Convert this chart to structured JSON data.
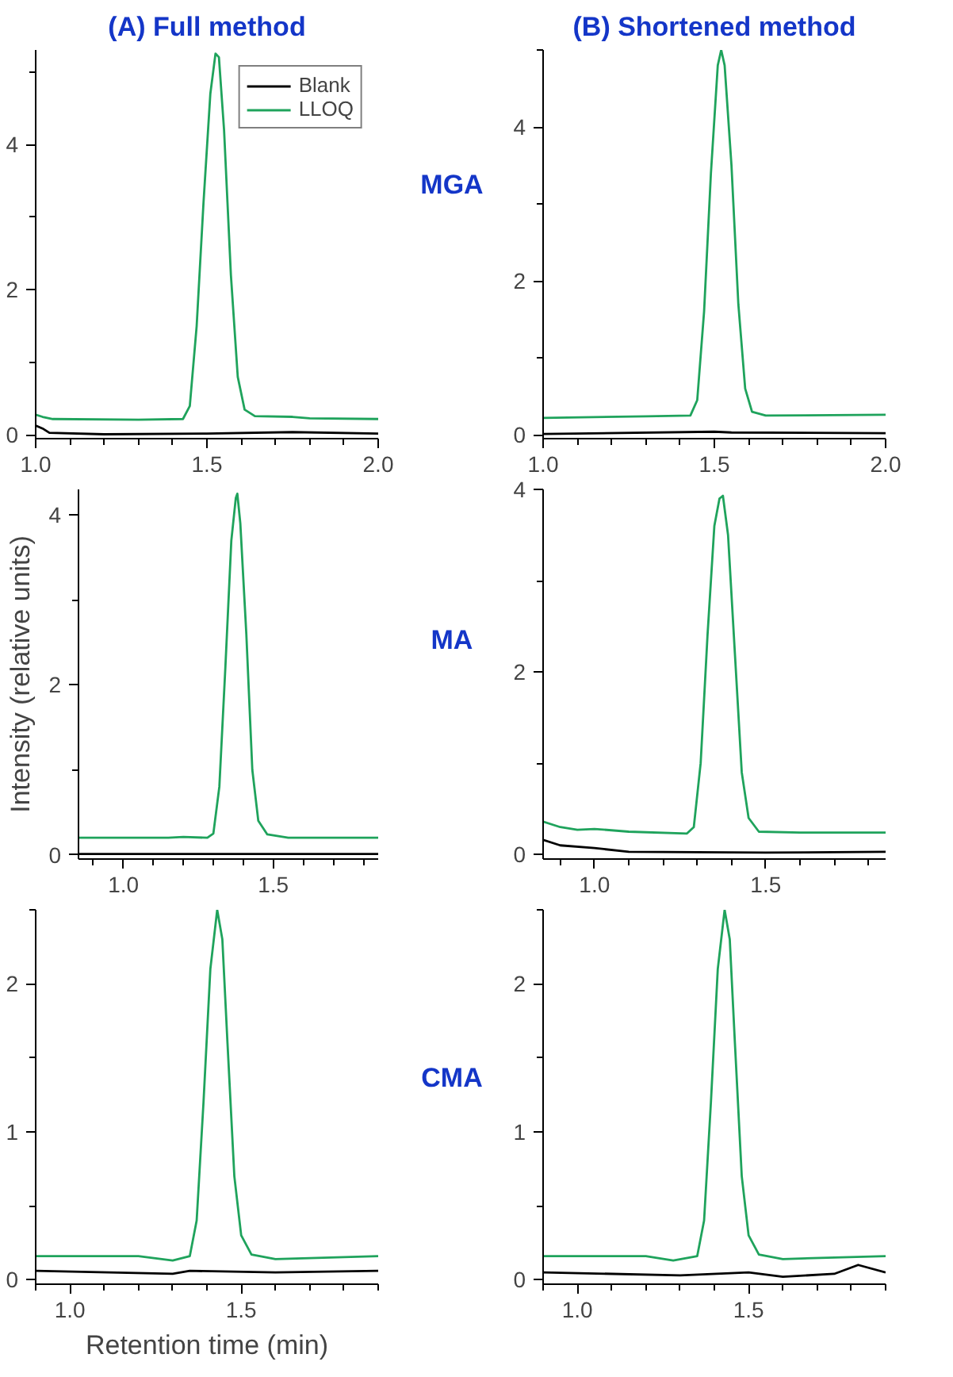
{
  "chart_data": [
    {
      "type": "line",
      "title": "(A) Full method",
      "annotations": [
        "MGA"
      ],
      "legend": "top right",
      "grid": false,
      "xlim": [
        1.0,
        2.0
      ],
      "ylim": [
        -0.05,
        5.3
      ],
      "xticks": [
        {
          "value": 1.0,
          "label": "1.0"
        },
        {
          "value": 1.1,
          "label": null
        },
        {
          "value": 1.2,
          "label": null
        },
        {
          "value": 1.3,
          "label": null
        },
        {
          "value": 1.4,
          "label": null
        },
        {
          "value": 1.5,
          "label": "1.5"
        },
        {
          "value": 1.6,
          "label": null
        },
        {
          "value": 1.7,
          "label": null
        },
        {
          "value": 1.8,
          "label": null
        },
        {
          "value": 1.9,
          "label": null
        },
        {
          "value": 2.0,
          "label": "2.0"
        }
      ],
      "yticks": [
        0,
        {
          "value": 1,
          "label": null
        },
        2,
        {
          "value": 3,
          "label": null
        },
        4,
        {
          "value": 5,
          "label": null
        }
      ],
      "series": [
        {
          "name": "Blank",
          "color": "#000000",
          "x": [
            1.0,
            1.02,
            1.04,
            1.2,
            1.5,
            1.75,
            2.0
          ],
          "values": [
            0.13,
            0.09,
            0.03,
            0.01,
            0.02,
            0.04,
            0.02
          ]
        },
        {
          "name": "LLOQ",
          "color": "#1fa35c",
          "x": [
            1.0,
            1.02,
            1.05,
            1.3,
            1.43,
            1.45,
            1.47,
            1.49,
            1.51,
            1.525,
            1.535,
            1.55,
            1.57,
            1.59,
            1.61,
            1.64,
            1.75,
            1.8,
            2.0
          ],
          "values": [
            0.28,
            0.25,
            0.22,
            0.21,
            0.22,
            0.4,
            1.5,
            3.2,
            4.7,
            5.25,
            5.2,
            4.2,
            2.2,
            0.8,
            0.35,
            0.26,
            0.25,
            0.23,
            0.22
          ]
        }
      ]
    },
    {
      "type": "line",
      "title": "(B) Shortened method",
      "grid": false,
      "xlim": [
        1.0,
        2.0
      ],
      "ylim": [
        -0.05,
        5.0
      ],
      "xticks": [
        {
          "value": 1.0,
          "label": "1.0"
        },
        {
          "value": 1.1,
          "label": null
        },
        {
          "value": 1.2,
          "label": null
        },
        {
          "value": 1.3,
          "label": null
        },
        {
          "value": 1.4,
          "label": null
        },
        {
          "value": 1.5,
          "label": "1.5"
        },
        {
          "value": 1.6,
          "label": null
        },
        {
          "value": 1.7,
          "label": null
        },
        {
          "value": 1.8,
          "label": null
        },
        {
          "value": 1.9,
          "label": null
        },
        {
          "value": 2.0,
          "label": "2.0"
        }
      ],
      "yticks": [
        0,
        {
          "value": 1,
          "label": null
        },
        2,
        {
          "value": 3,
          "label": null
        },
        4,
        {
          "value": 5,
          "label": null
        }
      ],
      "series": [
        {
          "color": "#000000",
          "x": [
            1.0,
            1.5,
            1.55,
            2.0
          ],
          "values": [
            0.01,
            0.04,
            0.03,
            0.02
          ]
        },
        {
          "color": "#1fa35c",
          "x": [
            1.0,
            1.3,
            1.43,
            1.45,
            1.47,
            1.49,
            1.51,
            1.52,
            1.53,
            1.55,
            1.57,
            1.59,
            1.61,
            1.65,
            2.0
          ],
          "values": [
            0.22,
            0.24,
            0.25,
            0.45,
            1.6,
            3.4,
            4.8,
            5.0,
            4.8,
            3.5,
            1.7,
            0.6,
            0.3,
            0.25,
            0.26
          ]
        }
      ]
    },
    {
      "type": "line",
      "ylabel": "Intensity (relative units)",
      "annotations": [
        "MA"
      ],
      "grid": false,
      "xlim": [
        0.85,
        1.85
      ],
      "ylim": [
        -0.05,
        4.3
      ],
      "xticks": [
        {
          "value": 0.9,
          "label": null
        },
        {
          "value": 1.0,
          "label": "1.0"
        },
        {
          "value": 1.1,
          "label": null
        },
        {
          "value": 1.2,
          "label": null
        },
        {
          "value": 1.3,
          "label": null
        },
        {
          "value": 1.4,
          "label": null
        },
        {
          "value": 1.5,
          "label": "1.5"
        },
        {
          "value": 1.6,
          "label": null
        },
        {
          "value": 1.7,
          "label": null
        },
        {
          "value": 1.8,
          "label": null
        }
      ],
      "yticks": [
        0,
        {
          "value": 1,
          "label": null
        },
        2,
        {
          "value": 3,
          "label": null
        },
        4
      ],
      "series": [
        {
          "color": "#000000",
          "x": [
            0.85,
            1.85
          ],
          "values": [
            0.01,
            0.01
          ]
        },
        {
          "color": "#1fa35c",
          "x": [
            0.85,
            1.15,
            1.2,
            1.28,
            1.3,
            1.32,
            1.34,
            1.36,
            1.375,
            1.38,
            1.39,
            1.41,
            1.43,
            1.45,
            1.48,
            1.55,
            1.85
          ],
          "values": [
            0.2,
            0.2,
            0.21,
            0.2,
            0.25,
            0.8,
            2.2,
            3.7,
            4.2,
            4.25,
            3.9,
            2.6,
            1.0,
            0.4,
            0.24,
            0.2,
            0.2
          ]
        }
      ]
    },
    {
      "type": "line",
      "grid": false,
      "xlim": [
        0.85,
        1.85
      ],
      "ylim": [
        -0.05,
        4.0
      ],
      "xticks": [
        {
          "value": 0.9,
          "label": null
        },
        {
          "value": 1.0,
          "label": "1.0"
        },
        {
          "value": 1.1,
          "label": null
        },
        {
          "value": 1.2,
          "label": null
        },
        {
          "value": 1.3,
          "label": null
        },
        {
          "value": 1.4,
          "label": null
        },
        {
          "value": 1.5,
          "label": "1.5"
        },
        {
          "value": 1.6,
          "label": null
        },
        {
          "value": 1.7,
          "label": null
        },
        {
          "value": 1.8,
          "label": null
        }
      ],
      "yticks": [
        0,
        {
          "value": 1,
          "label": null
        },
        2,
        {
          "value": 3,
          "label": null
        },
        4
      ],
      "series": [
        {
          "color": "#000000",
          "x": [
            0.85,
            0.9,
            1.0,
            1.1,
            1.5,
            1.85
          ],
          "values": [
            0.16,
            0.1,
            0.07,
            0.03,
            0.02,
            0.03
          ]
        },
        {
          "color": "#1fa35c",
          "x": [
            0.85,
            0.9,
            0.95,
            1.0,
            1.1,
            1.27,
            1.29,
            1.31,
            1.33,
            1.35,
            1.365,
            1.375,
            1.39,
            1.41,
            1.43,
            1.45,
            1.48,
            1.6,
            1.85
          ],
          "values": [
            0.36,
            0.3,
            0.27,
            0.28,
            0.25,
            0.23,
            0.3,
            1.0,
            2.4,
            3.6,
            3.9,
            3.93,
            3.5,
            2.2,
            0.9,
            0.4,
            0.25,
            0.24,
            0.24
          ]
        }
      ]
    },
    {
      "type": "line",
      "xlabel": "Retention time (min)",
      "annotations": [
        "CMA"
      ],
      "grid": false,
      "xlim": [
        0.9,
        1.9
      ],
      "ylim": [
        -0.03,
        2.5
      ],
      "xticks": [
        {
          "value": 0.9,
          "label": null
        },
        {
          "value": 1.0,
          "label": "1.0"
        },
        {
          "value": 1.1,
          "label": null
        },
        {
          "value": 1.2,
          "label": null
        },
        {
          "value": 1.3,
          "label": null
        },
        {
          "value": 1.4,
          "label": null
        },
        {
          "value": 1.5,
          "label": "1.5"
        },
        {
          "value": 1.6,
          "label": null
        },
        {
          "value": 1.7,
          "label": null
        },
        {
          "value": 1.8,
          "label": null
        },
        {
          "value": 1.9,
          "label": null
        }
      ],
      "yticks": [
        0,
        {
          "value": 0.5,
          "label": null
        },
        1,
        {
          "value": 1.5,
          "label": null
        },
        2,
        {
          "value": 2.5,
          "label": null
        }
      ],
      "series": [
        {
          "color": "#000000",
          "x": [
            0.9,
            1.3,
            1.35,
            1.6,
            1.9
          ],
          "values": [
            0.06,
            0.04,
            0.06,
            0.05,
            0.06
          ]
        },
        {
          "color": "#1fa35c",
          "x": [
            0.9,
            1.2,
            1.3,
            1.35,
            1.37,
            1.39,
            1.41,
            1.43,
            1.445,
            1.46,
            1.48,
            1.5,
            1.53,
            1.6,
            1.9
          ],
          "values": [
            0.16,
            0.16,
            0.13,
            0.16,
            0.4,
            1.2,
            2.1,
            2.5,
            2.3,
            1.6,
            0.7,
            0.3,
            0.17,
            0.14,
            0.16
          ]
        }
      ]
    },
    {
      "type": "line",
      "grid": false,
      "xlim": [
        0.9,
        1.9
      ],
      "ylim": [
        -0.03,
        2.5
      ],
      "xticks": [
        {
          "value": 0.9,
          "label": null
        },
        {
          "value": 1.0,
          "label": "1.0"
        },
        {
          "value": 1.1,
          "label": null
        },
        {
          "value": 1.2,
          "label": null
        },
        {
          "value": 1.3,
          "label": null
        },
        {
          "value": 1.4,
          "label": null
        },
        {
          "value": 1.5,
          "label": "1.5"
        },
        {
          "value": 1.6,
          "label": null
        },
        {
          "value": 1.7,
          "label": null
        },
        {
          "value": 1.8,
          "label": null
        },
        {
          "value": 1.9,
          "label": null
        }
      ],
      "yticks": [
        0,
        {
          "value": 0.5,
          "label": null
        },
        1,
        {
          "value": 1.5,
          "label": null
        },
        2,
        {
          "value": 2.5,
          "label": null
        }
      ],
      "series": [
        {
          "color": "#000000",
          "x": [
            0.9,
            1.3,
            1.5,
            1.6,
            1.75,
            1.82,
            1.9
          ],
          "values": [
            0.05,
            0.03,
            0.05,
            0.02,
            0.04,
            0.1,
            0.05
          ]
        },
        {
          "color": "#1fa35c",
          "x": [
            0.9,
            1.2,
            1.28,
            1.35,
            1.37,
            1.39,
            1.41,
            1.43,
            1.445,
            1.46,
            1.48,
            1.5,
            1.53,
            1.6,
            1.9
          ],
          "values": [
            0.16,
            0.16,
            0.13,
            0.16,
            0.4,
            1.2,
            2.1,
            2.5,
            2.3,
            1.6,
            0.7,
            0.3,
            0.17,
            0.14,
            0.16
          ]
        }
      ]
    }
  ]
}
